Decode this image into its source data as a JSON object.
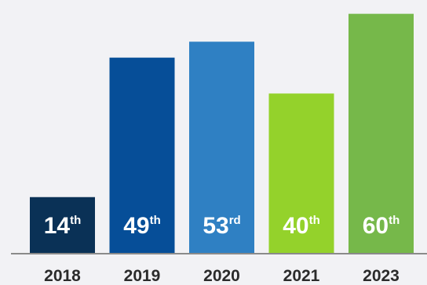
{
  "chart_data": {
    "type": "bar",
    "title": "",
    "xlabel": "",
    "ylabel": "",
    "grid": false,
    "legend": "none",
    "categories": [
      "2018",
      "2019",
      "2020",
      "2021",
      "2023"
    ],
    "values": [
      14,
      49,
      53,
      40,
      60
    ],
    "data_labels": [
      {
        "number": "14",
        "suffix": "th"
      },
      {
        "number": "49",
        "suffix": "th"
      },
      {
        "number": "53",
        "suffix": "rd"
      },
      {
        "number": "40",
        "suffix": "th"
      },
      {
        "number": "60",
        "suffix": "th"
      }
    ],
    "colors": [
      "#0a3156",
      "#064e98",
      "#2f80c3",
      "#94d22b",
      "#76b84a"
    ],
    "ylim": [
      0,
      61.5
    ],
    "baseline_color": "#8a8a8a",
    "label_color": "#2b2b2b"
  }
}
